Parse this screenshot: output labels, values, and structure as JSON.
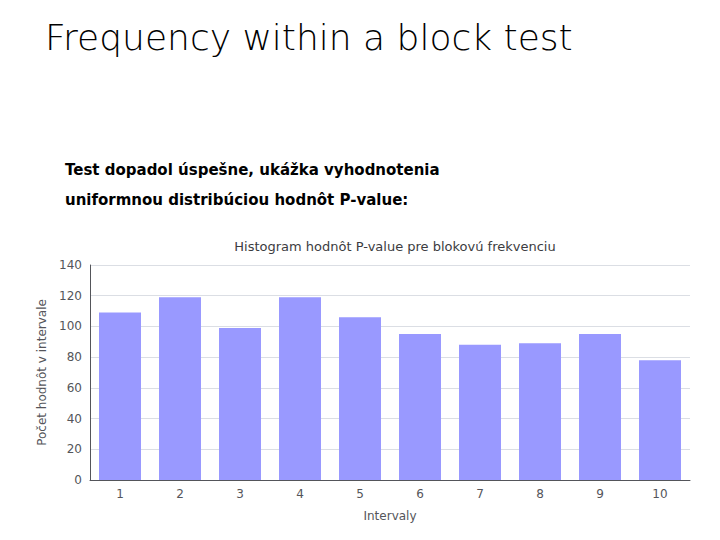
{
  "chart_data": {
    "type": "bar",
    "title": "Frequency within a block test",
    "subtitle": [
      "Test dopadol úspešne, ukážka vyhodnotenia",
      "uniformnou distribúciou hodnôt P-value:"
    ],
    "chart_title": "Histogram hodnôt P-value pre blokovú frekvenciu",
    "xlabel": "Intervaly",
    "ylabel": "Počet hodnôt v intervale",
    "categories": [
      1,
      2,
      3,
      4,
      5,
      6,
      7,
      8,
      9,
      10
    ],
    "values": [
      109,
      119,
      99,
      119,
      106,
      95,
      88,
      89,
      95,
      78
    ],
    "color": "#9999FF",
    "ylim": [
      0,
      140
    ],
    "yticks": [
      0,
      20,
      40,
      60,
      80,
      100,
      120,
      140
    ],
    "grid": true
  }
}
